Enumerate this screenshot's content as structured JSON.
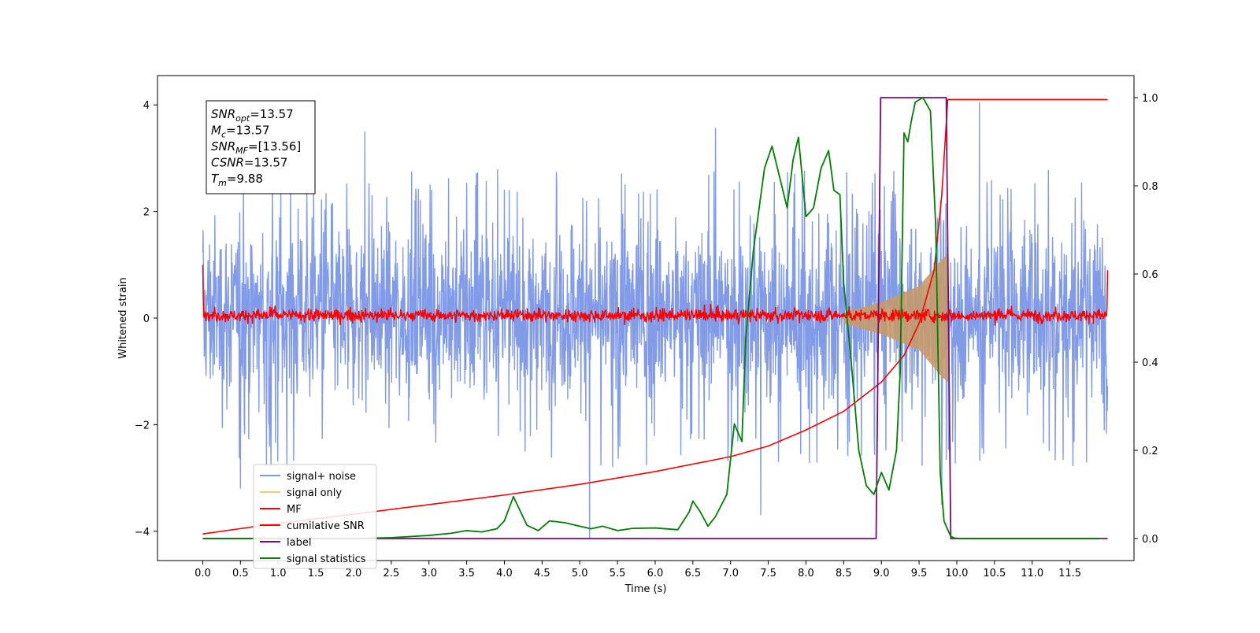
{
  "chart_data": {
    "type": "line",
    "xlabel": "Time (s)",
    "ylabel": "Whitened strain",
    "y2label": "",
    "xlim": [
      -0.6,
      12.35
    ],
    "ylim": [
      -4.55,
      4.55
    ],
    "y2lim": [
      -0.05,
      1.05
    ],
    "xticks": [
      0.0,
      0.5,
      1.0,
      1.5,
      2.0,
      2.5,
      3.0,
      3.5,
      4.0,
      4.5,
      5.0,
      5.5,
      6.0,
      6.5,
      7.0,
      7.5,
      8.0,
      8.5,
      9.0,
      9.5,
      10.0,
      10.5,
      11.0,
      11.5
    ],
    "xtick_labels": [
      "0.0",
      "0.5",
      "1.0",
      "1.5",
      "2.0",
      "2.5",
      "3.0",
      "3.5",
      "4.0",
      "4.5",
      "5.0",
      "5.5",
      "6.0",
      "6.5",
      "7.0",
      "7.5",
      "8.0",
      "8.5",
      "9.0",
      "9.5",
      "10.0",
      "10.5",
      "11.0",
      "11.5"
    ],
    "yticks": [
      -4,
      -2,
      0,
      2,
      4
    ],
    "ytick_labels": [
      "−4",
      "−2",
      "0",
      "2",
      "4"
    ],
    "y2ticks": [
      0.0,
      0.2,
      0.4,
      0.6,
      0.8,
      1.0
    ],
    "y2tick_labels": [
      "0.0",
      "0.2",
      "0.4",
      "0.6",
      "0.8",
      "1.0"
    ],
    "grid": false,
    "legend_position": "lower-left",
    "annotation": [
      {
        "main": "SNR",
        "sub": "opt",
        "value": "=13.57"
      },
      {
        "main": "M",
        "sub": "c",
        "value": "=13.57"
      },
      {
        "main": "SNR",
        "sub": "MF",
        "value": "=[13.56]"
      },
      {
        "main": "CSNR",
        "sub": "",
        "value": "=13.57"
      },
      {
        "main": "T",
        "sub": "m",
        "value": "=9.88"
      }
    ],
    "series": [
      {
        "name": "signal+ noise",
        "color": "#7b96e8",
        "axis": "left",
        "description_values": {
          "x_range": [
            0.0,
            12.0
          ],
          "typical_envelope": [
            -1.8,
            2.0
          ],
          "min": -4.15,
          "max": 4.05,
          "spikes": [
            [
              5.13,
              -4.15
            ],
            [
              10.3,
              4.05
            ],
            [
              6.8,
              3.57
            ],
            [
              2.15,
              3.5
            ],
            [
              9.8,
              -3.5
            ],
            [
              7.4,
              -3.7
            ],
            [
              0.5,
              -3.2
            ]
          ]
        }
      },
      {
        "name": "signal only",
        "color": "#f3c86f",
        "axis": "left",
        "description_values": {
          "chirp_start": 8.5,
          "merger": 9.88,
          "envelope": [
            [
              8.5,
              0.1
            ],
            [
              9.0,
              0.3
            ],
            [
              9.5,
              0.6
            ],
            [
              9.8,
              1.1
            ],
            [
              9.88,
              1.2
            ],
            [
              9.9,
              0.0
            ]
          ]
        }
      },
      {
        "name": "MF",
        "color": "#ff0000",
        "axis": "left",
        "description_values": {
          "mean": 0.05,
          "amplitude": 0.15,
          "edges": [
            [
              0.0,
              1.0
            ],
            [
              12.0,
              0.9
            ]
          ]
        }
      },
      {
        "name": "cumilative SNR",
        "color": "#ff0000",
        "axis": "left",
        "x": [
          0.0,
          1.0,
          2.0,
          3.0,
          4.0,
          5.0,
          6.0,
          7.0,
          7.5,
          8.0,
          8.5,
          9.0,
          9.3,
          9.5,
          9.7,
          9.8,
          9.88,
          10.0,
          12.0
        ],
        "y": [
          -4.05,
          -3.85,
          -3.68,
          -3.5,
          -3.32,
          -3.12,
          -2.88,
          -2.6,
          -2.4,
          -2.1,
          -1.75,
          -1.2,
          -0.7,
          -0.1,
          0.9,
          2.3,
          4.1,
          4.1,
          4.1
        ]
      },
      {
        "name": "label",
        "color": "#7b0a7b",
        "axis": "right",
        "x": [
          0.0,
          8.93,
          8.99,
          9.86,
          9.92,
          12.0
        ],
        "y": [
          0.0,
          0.0,
          1.0,
          1.0,
          0.0,
          0.0
        ]
      },
      {
        "name": "signal statistics",
        "color": "#008000",
        "axis": "right",
        "x": [
          0.0,
          1.0,
          2.0,
          2.5,
          3.0,
          3.3,
          3.5,
          3.7,
          3.9,
          4.0,
          4.12,
          4.3,
          4.45,
          4.6,
          4.8,
          5.0,
          5.15,
          5.3,
          5.5,
          5.7,
          6.0,
          6.3,
          6.45,
          6.5,
          6.6,
          6.7,
          6.8,
          6.95,
          7.05,
          7.15,
          7.2,
          7.3,
          7.45,
          7.55,
          7.65,
          7.75,
          7.83,
          7.9,
          8.0,
          8.1,
          8.2,
          8.3,
          8.37,
          8.45,
          8.5,
          8.6,
          8.7,
          8.8,
          8.9,
          9.0,
          9.1,
          9.2,
          9.25,
          9.3,
          9.35,
          9.4,
          9.45,
          9.55,
          9.65,
          9.72,
          9.78,
          9.83,
          9.88,
          9.92,
          9.97,
          10.05,
          11.0,
          11.9
        ],
        "y": [
          0.0,
          0.0,
          0.0,
          0.002,
          0.007,
          0.012,
          0.018,
          0.015,
          0.022,
          0.04,
          0.095,
          0.03,
          0.018,
          0.04,
          0.036,
          0.028,
          0.022,
          0.028,
          0.018,
          0.023,
          0.024,
          0.02,
          0.06,
          0.085,
          0.06,
          0.028,
          0.05,
          0.1,
          0.26,
          0.22,
          0.45,
          0.65,
          0.84,
          0.89,
          0.82,
          0.75,
          0.86,
          0.91,
          0.73,
          0.75,
          0.84,
          0.88,
          0.79,
          0.78,
          0.58,
          0.4,
          0.2,
          0.12,
          0.1,
          0.15,
          0.11,
          0.2,
          0.38,
          0.92,
          0.9,
          0.95,
          0.99,
          1.0,
          0.97,
          0.71,
          0.15,
          0.04,
          0.02,
          0.005,
          0.001,
          0.0,
          0.0,
          0.0
        ]
      }
    ]
  }
}
